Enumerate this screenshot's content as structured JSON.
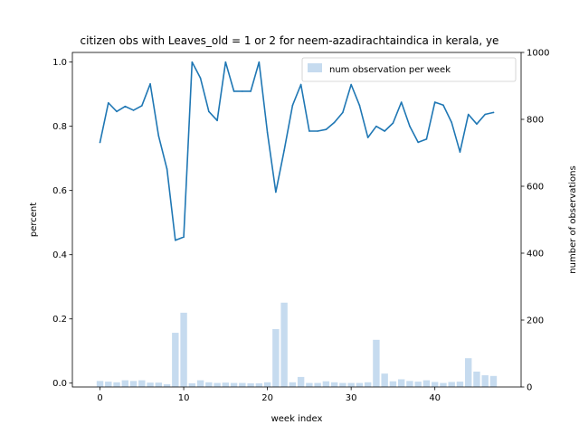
{
  "chart_data": {
    "type": "bar+line",
    "title": "citizen obs with Leaves_old = 1 or 2 for neem-azadirachtaindica in kerala, ye",
    "xlabel": "week index",
    "ylabel_left": "percent",
    "ylabel_right": "number of observations",
    "xlim": [
      -3.3,
      50.3
    ],
    "ylim_left": [
      -0.012,
      1.03
    ],
    "ylim_right": [
      0,
      1000
    ],
    "x_ticks": [
      0,
      10,
      20,
      30,
      40
    ],
    "y_left_ticks": [
      "0.0",
      "0.2",
      "0.4",
      "0.6",
      "0.8",
      "1.0"
    ],
    "y_right_ticks": [
      "0",
      "200",
      "400",
      "600",
      "800",
      "1000"
    ],
    "grid": false,
    "legend": {
      "position": "top-right",
      "entries": [
        "num observation per week"
      ]
    },
    "colors": {
      "line": "#1f77b4",
      "bars": "#c6dbef"
    },
    "series": [
      {
        "name": "num observation per week",
        "kind": "bar",
        "axis": "right",
        "x": [
          0,
          1,
          2,
          3,
          4,
          5,
          6,
          7,
          8,
          9,
          10,
          11,
          12,
          13,
          14,
          15,
          16,
          17,
          18,
          19,
          20,
          21,
          22,
          23,
          24,
          25,
          26,
          27,
          28,
          29,
          30,
          31,
          32,
          33,
          34,
          35,
          36,
          37,
          38,
          39,
          40,
          41,
          42,
          43,
          44,
          45,
          46,
          47
        ],
        "values": [
          18,
          16,
          14,
          20,
          18,
          20,
          13,
          13,
          8,
          162,
          222,
          11,
          20,
          14,
          12,
          13,
          12,
          12,
          11,
          11,
          14,
          173,
          252,
          14,
          30,
          12,
          12,
          17,
          14,
          12,
          12,
          12,
          14,
          141,
          40,
          17,
          23,
          18,
          16,
          20,
          15,
          12,
          15,
          16,
          86,
          46,
          35,
          33
        ]
      },
      {
        "name": "percent",
        "kind": "line",
        "axis": "left",
        "x": [
          0,
          1,
          2,
          3,
          4,
          5,
          6,
          7,
          8,
          9,
          10,
          11,
          12,
          13,
          14,
          15,
          16,
          17,
          18,
          19,
          20,
          21,
          22,
          23,
          24,
          25,
          26,
          27,
          28,
          29,
          30,
          31,
          32,
          33,
          34,
          35,
          36,
          37,
          38,
          39,
          40,
          41,
          42,
          43,
          44,
          45,
          46,
          47
        ],
        "values": [
          0.75,
          0.873,
          0.846,
          0.862,
          0.85,
          0.864,
          0.932,
          0.77,
          0.667,
          0.445,
          0.455,
          1.0,
          0.95,
          0.846,
          0.818,
          1.0,
          0.909,
          0.909,
          0.909,
          1.0,
          0.78,
          0.595,
          0.725,
          0.865,
          0.93,
          0.785,
          0.785,
          0.79,
          0.812,
          0.843,
          0.93,
          0.865,
          0.765,
          0.8,
          0.785,
          0.81,
          0.875,
          0.8,
          0.75,
          0.76,
          0.875,
          0.866,
          0.812,
          0.72,
          0.837,
          0.807,
          0.837,
          0.843
        ]
      }
    ]
  }
}
